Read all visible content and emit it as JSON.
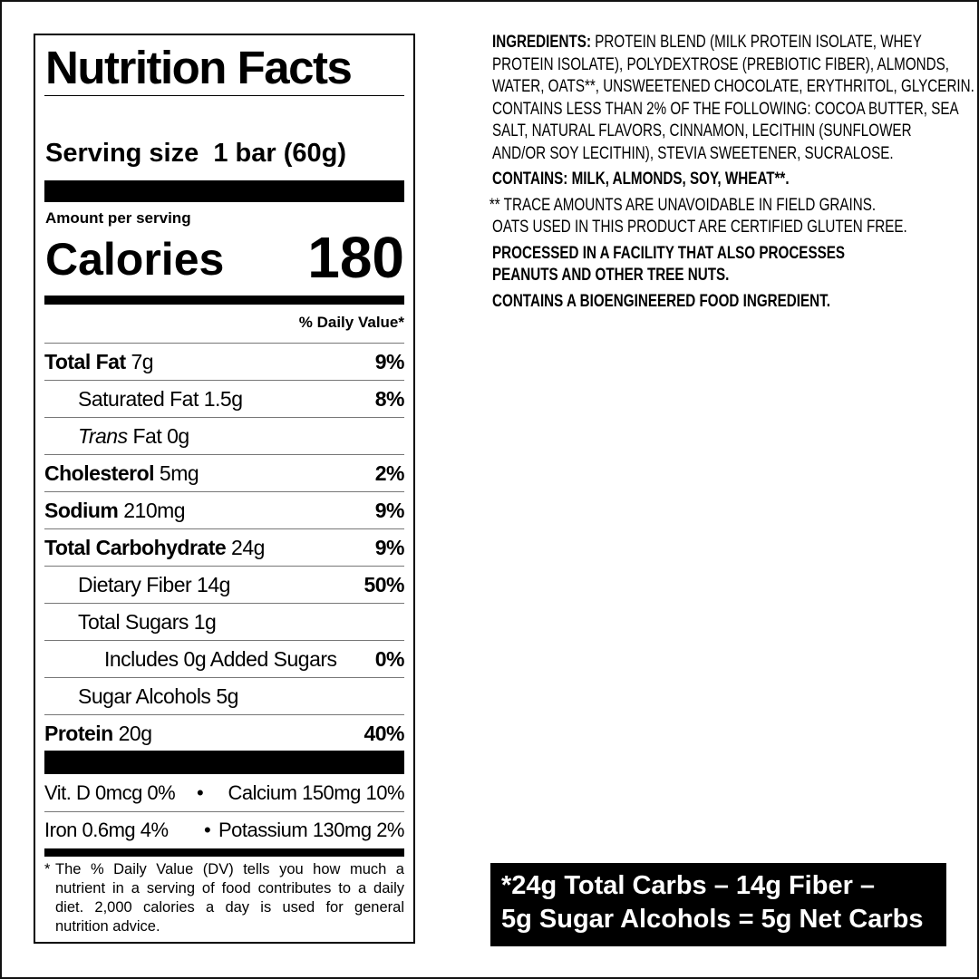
{
  "nutrition_facts": {
    "title": "Nutrition Facts",
    "serving_size_label": "Serving size",
    "serving_size_value": "1 bar (60g)",
    "amount_per_serving": "Amount per serving",
    "calories_label": "Calories",
    "calories_value": "180",
    "daily_value_header": "% Daily Value*",
    "rows": [
      {
        "name": "Total Fat",
        "amount": "7g",
        "dv": "9%",
        "bold": true,
        "indent": 0
      },
      {
        "name": "Saturated Fat",
        "amount": "1.5g",
        "dv": "8%",
        "bold": false,
        "indent": 1
      },
      {
        "name": "Trans",
        "name_suffix": " Fat",
        "amount": "0g",
        "dv": "",
        "bold": false,
        "indent": 1,
        "italic": true
      },
      {
        "name": "Cholesterol",
        "amount": "5mg",
        "dv": "2%",
        "bold": true,
        "indent": 0
      },
      {
        "name": "Sodium",
        "amount": "210mg",
        "dv": "9%",
        "bold": true,
        "indent": 0
      },
      {
        "name": "Total Carbohydrate",
        "amount": "24g",
        "dv": "9%",
        "bold": true,
        "indent": 0
      },
      {
        "name": "Dietary Fiber",
        "amount": "14g",
        "dv": "50%",
        "bold": false,
        "indent": 1
      },
      {
        "name": "Total Sugars",
        "amount": "1g",
        "dv": "",
        "bold": false,
        "indent": 1
      },
      {
        "name": "Includes 0g Added Sugars",
        "amount": "",
        "dv": "0%",
        "bold": false,
        "indent": 2
      },
      {
        "name": "Sugar Alcohols",
        "amount": "5g",
        "dv": "",
        "bold": false,
        "indent": 1
      },
      {
        "name": "Protein",
        "amount": "20g",
        "dv": "40%",
        "bold": true,
        "indent": 0
      }
    ],
    "vitamins": [
      {
        "left": "Vit. D 0mcg 0%",
        "right": "Calcium 150mg 10%"
      },
      {
        "left": "Iron 0.6mg 4%",
        "right": "Potassium 130mg 2%"
      }
    ],
    "bullet": "•",
    "footnote_asterisk": "*",
    "footnote": "The % Daily Value (DV) tells you how much a nutrient in a serving of food contributes to a daily diet. 2,000 calories a day is used for general nutrition advice."
  },
  "ingredients": {
    "label": "INGREDIENTS:",
    "lines": [
      " PROTEIN BLEND (MILK PROTEIN ISOLATE, WHEY",
      "PROTEIN ISOLATE), POLYDEXTROSE (PREBIOTIC FIBER), ALMONDS,",
      "WATER, OATS**, UNSWEETENED CHOCOLATE, ERYTHRITOL, GLYCERIN.",
      "CONTAINS LESS THAN 2% OF THE FOLLOWING: COCOA BUTTER, SEA",
      "SALT, NATURAL FLAVORS, CINNAMON, LECITHIN (SUNFLOWER",
      "AND/OR SOY LECITHIN), STEVIA SWEETENER, SUCRALOSE."
    ],
    "contains": "CONTAINS: MILK, ALMONDS, SOY, WHEAT**.",
    "trace_note_1": "** TRACE AMOUNTS ARE UNAVOIDABLE IN FIELD GRAINS.",
    "trace_note_2": "OATS USED IN THIS PRODUCT ARE CERTIFIED GLUTEN FREE.",
    "facility_1": "PROCESSED IN A FACILITY THAT ALSO PROCESSES",
    "facility_2": "PEANUTS AND OTHER TREE NUTS.",
    "bioengineered": "CONTAINS A BIOENGINEERED FOOD INGREDIENT."
  },
  "net_carbs": {
    "line_1": "*24g Total Carbs – 14g Fiber –",
    "line_2": "5g Sugar Alcohols = 5g Net Carbs"
  }
}
